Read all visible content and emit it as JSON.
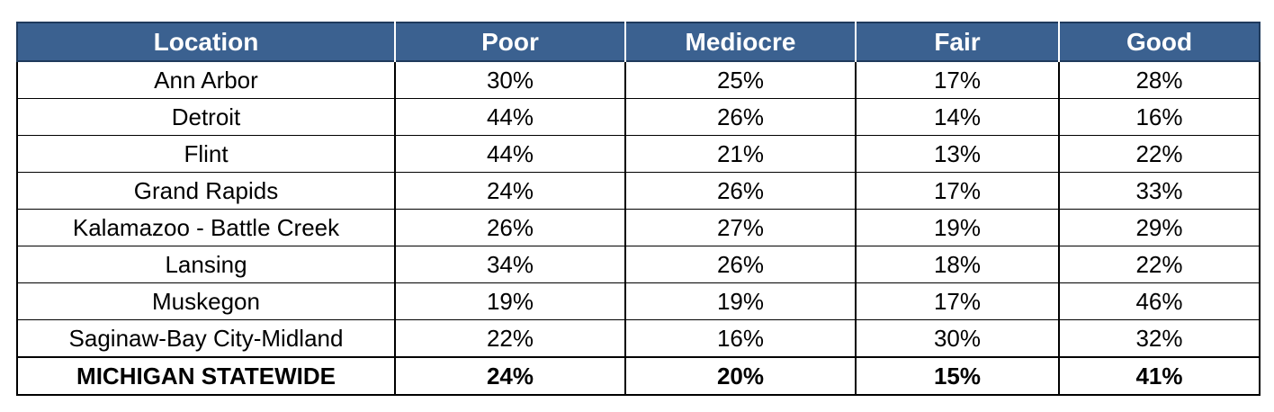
{
  "table": {
    "headers": [
      "Location",
      "Poor",
      "Mediocre",
      "Fair",
      "Good"
    ],
    "rows": [
      {
        "location": "Ann Arbor",
        "poor": "30%",
        "mediocre": "25%",
        "fair": "17%",
        "good": "28%"
      },
      {
        "location": "Detroit",
        "poor": "44%",
        "mediocre": "26%",
        "fair": "14%",
        "good": "16%"
      },
      {
        "location": "Flint",
        "poor": "44%",
        "mediocre": "21%",
        "fair": "13%",
        "good": "22%"
      },
      {
        "location": "Grand Rapids",
        "poor": "24%",
        "mediocre": "26%",
        "fair": "17%",
        "good": "33%"
      },
      {
        "location": "Kalamazoo - Battle Creek",
        "poor": "26%",
        "mediocre": "27%",
        "fair": "19%",
        "good": "29%"
      },
      {
        "location": "Lansing",
        "poor": "34%",
        "mediocre": "26%",
        "fair": "18%",
        "good": "22%"
      },
      {
        "location": "Muskegon",
        "poor": "19%",
        "mediocre": "19%",
        "fair": "17%",
        "good": "46%"
      },
      {
        "location": "Saginaw-Bay City-Midland",
        "poor": "22%",
        "mediocre": "16%",
        "fair": "30%",
        "good": "32%"
      }
    ],
    "total": {
      "location": "MICHIGAN STATEWIDE",
      "poor": "24%",
      "mediocre": "20%",
      "fair": "15%",
      "good": "41%"
    }
  },
  "colors": {
    "header_bg": "#3b6190",
    "header_text": "#ffffff",
    "border": "#000000"
  }
}
